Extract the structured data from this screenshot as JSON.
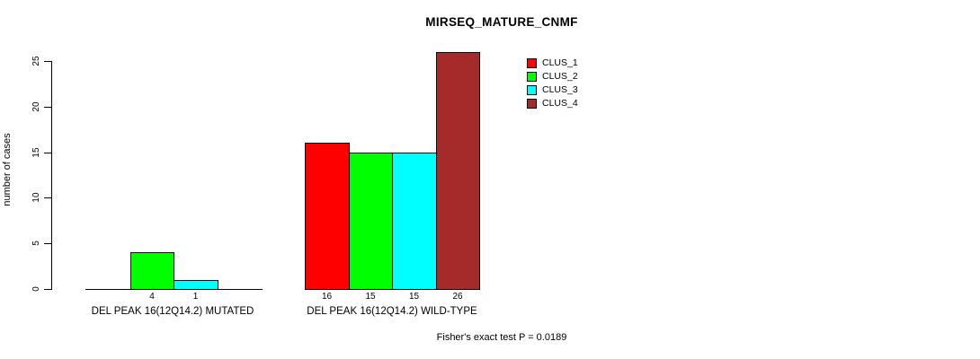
{
  "chart_data": {
    "type": "bar",
    "title": "MIRSEQ_MATURE_CNMF",
    "xlabel": "",
    "ylabel": "number of cases",
    "ylim": [
      0,
      25
    ],
    "yticks": [
      0,
      5,
      10,
      15,
      20,
      25
    ],
    "grid": false,
    "legend_position": "top-right",
    "bar_border_color": "#000000",
    "value_labels": "shown under each nonzero bar",
    "categories": [
      "DEL PEAK 16(12Q14.2) MUTATED",
      "DEL PEAK 16(12Q14.2) WILD-TYPE"
    ],
    "series": [
      {
        "name": "CLUS_1",
        "color": "#FF0000",
        "values": [
          0,
          16
        ]
      },
      {
        "name": "CLUS_2",
        "color": "#00FF00",
        "values": [
          4,
          15
        ]
      },
      {
        "name": "CLUS_3",
        "color": "#00FFFF",
        "values": [
          1,
          15
        ]
      },
      {
        "name": "CLUS_4",
        "color": "#A52A2A",
        "values": [
          0,
          26
        ]
      }
    ],
    "annotation": "Fisher's exact test P = 0.0189"
  },
  "legend": {
    "items": [
      {
        "label": "CLUS_1",
        "color": "#FF0000"
      },
      {
        "label": "CLUS_2",
        "color": "#00FF00"
      },
      {
        "label": "CLUS_3",
        "color": "#00FFFF"
      },
      {
        "label": "CLUS_4",
        "color": "#A52A2A"
      }
    ]
  }
}
